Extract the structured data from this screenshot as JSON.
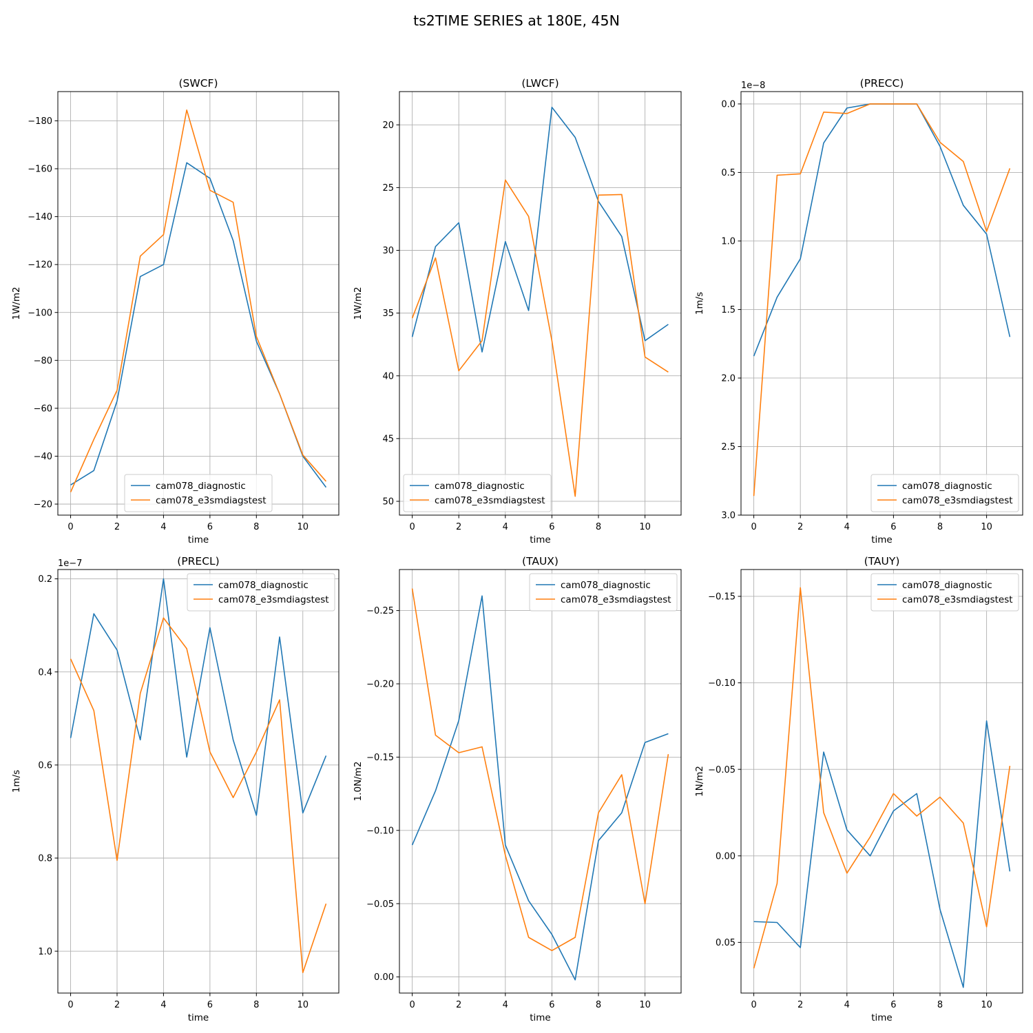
{
  "suptitle": "ts2TIME SERIES at 180E, 45N",
  "colors": {
    "series1": "#1f77b4",
    "series2": "#ff7f0e",
    "grid": "#b0b0b0"
  },
  "chart_data": [
    {
      "type": "line",
      "title": "(SWCF)",
      "xlabel": "time",
      "ylabel": "1W/m2",
      "offset_text": "",
      "xlim": [
        -0.55,
        11.55
      ],
      "ylim": [
        -15.4,
        -192.2
      ],
      "y_inverted": true,
      "xticks": [
        0,
        2,
        4,
        6,
        8,
        10
      ],
      "xtick_labels": [
        "0",
        "2",
        "4",
        "6",
        "8",
        "10"
      ],
      "yticks": [
        -20,
        -40,
        -60,
        -80,
        -100,
        -120,
        -140,
        -160,
        -180
      ],
      "ytick_labels": [
        "−20",
        "−40",
        "−60",
        "−80",
        "−100",
        "−120",
        "−140",
        "−160",
        "−180"
      ],
      "grid": true,
      "legend_position": "lower center",
      "x": [
        0,
        1,
        2,
        3,
        4,
        5,
        6,
        7,
        8,
        9,
        10,
        11
      ],
      "series": [
        {
          "name": "cam078_diagnostic",
          "values": [
            -28.0,
            -34.0,
            -63.0,
            -115.0,
            -120.0,
            -162.5,
            -156.0,
            -130.0,
            -88.0,
            -66.0,
            -40.0,
            -27.0
          ]
        },
        {
          "name": "cam078_e3smdiagstest",
          "values": [
            -25.0,
            -47.0,
            -67.5,
            -123.5,
            -132.5,
            -184.5,
            -151.0,
            -146.0,
            -90.0,
            -66.0,
            -40.5,
            -29.5
          ]
        }
      ]
    },
    {
      "type": "line",
      "title": "(LWCF)",
      "xlabel": "time",
      "ylabel": "1W/m2",
      "offset_text": "",
      "xlim": [
        -0.55,
        11.55
      ],
      "ylim": [
        51.1,
        17.35
      ],
      "y_inverted": true,
      "xticks": [
        0,
        2,
        4,
        6,
        8,
        10
      ],
      "xtick_labels": [
        "0",
        "2",
        "4",
        "6",
        "8",
        "10"
      ],
      "yticks": [
        20,
        25,
        30,
        35,
        40,
        45,
        50
      ],
      "ytick_labels": [
        "20",
        "25",
        "30",
        "35",
        "40",
        "45",
        "50"
      ],
      "grid": true,
      "legend_position": "lower left",
      "x": [
        0,
        1,
        2,
        3,
        4,
        5,
        6,
        7,
        8,
        9,
        10,
        11
      ],
      "series": [
        {
          "name": "cam078_diagnostic",
          "values": [
            36.9,
            29.7,
            27.8,
            38.1,
            29.3,
            34.8,
            18.6,
            21.0,
            26.1,
            28.9,
            37.2,
            35.9
          ]
        },
        {
          "name": "cam078_e3smdiagstest",
          "values": [
            35.4,
            30.6,
            39.6,
            37.2,
            24.4,
            27.3,
            37.2,
            49.6,
            25.6,
            25.55,
            38.5,
            39.7
          ]
        }
      ]
    },
    {
      "type": "line",
      "title": "(PRECC)",
      "xlabel": "time",
      "ylabel": "1m/s",
      "offset_text": "1e−8",
      "xlim": [
        -0.55,
        11.55
      ],
      "ylim": [
        3.0,
        -0.09
      ],
      "y_inverted": true,
      "xticks": [
        0,
        2,
        4,
        6,
        8,
        10
      ],
      "xtick_labels": [
        "0",
        "2",
        "4",
        "6",
        "8",
        "10"
      ],
      "yticks": [
        0.0,
        0.5,
        1.0,
        1.5,
        2.0,
        2.5,
        3.0
      ],
      "ytick_labels": [
        "0.0",
        "0.5",
        "1.0",
        "1.5",
        "2.0",
        "2.5",
        "3.0"
      ],
      "grid": true,
      "legend_position": "lower right",
      "x": [
        0,
        1,
        2,
        3,
        4,
        5,
        6,
        7,
        8,
        9,
        10,
        11
      ],
      "series": [
        {
          "name": "cam078_diagnostic",
          "values": [
            1.84,
            1.41,
            1.13,
            0.285,
            0.03,
            0.0,
            0.0,
            0.0,
            0.31,
            0.74,
            0.95,
            1.7
          ]
        },
        {
          "name": "cam078_e3smdiagstest",
          "values": [
            2.86,
            0.52,
            0.51,
            0.06,
            0.07,
            0.0,
            0.0,
            0.0,
            0.28,
            0.42,
            0.93,
            0.47
          ]
        }
      ]
    },
    {
      "type": "line",
      "title": "(PRECL)",
      "xlabel": "time",
      "ylabel": "1m/s",
      "offset_text": "1e−7",
      "xlim": [
        -0.55,
        11.55
      ],
      "ylim": [
        1.09,
        0.18
      ],
      "y_inverted": true,
      "xticks": [
        0,
        2,
        4,
        6,
        8,
        10
      ],
      "xtick_labels": [
        "0",
        "2",
        "4",
        "6",
        "8",
        "10"
      ],
      "yticks": [
        0.2,
        0.4,
        0.6,
        0.8,
        1.0
      ],
      "ytick_labels": [
        "0.2",
        "0.4",
        "0.6",
        "0.8",
        "1.0"
      ],
      "grid": true,
      "legend_position": "upper right",
      "x": [
        0,
        1,
        2,
        3,
        4,
        5,
        6,
        7,
        8,
        9,
        10,
        11
      ],
      "series": [
        {
          "name": "cam078_diagnostic",
          "values": [
            0.542,
            0.275,
            0.353,
            0.546,
            0.2,
            0.583,
            0.305,
            0.546,
            0.708,
            0.325,
            0.703,
            0.58
          ]
        },
        {
          "name": "cam078_e3smdiagstest",
          "values": [
            0.372,
            0.483,
            0.805,
            0.446,
            0.284,
            0.35,
            0.572,
            0.67,
            0.572,
            0.46,
            1.046,
            0.898
          ]
        }
      ]
    },
    {
      "type": "line",
      "title": "(TAUX)",
      "xlabel": "time",
      "ylabel": "1.0N/m2",
      "offset_text": "",
      "xlim": [
        -0.55,
        11.55
      ],
      "ylim": [
        0.011,
        -0.278
      ],
      "y_inverted": true,
      "xticks": [
        0,
        2,
        4,
        6,
        8,
        10
      ],
      "xtick_labels": [
        "0",
        "2",
        "4",
        "6",
        "8",
        "10"
      ],
      "yticks": [
        0.0,
        -0.05,
        -0.1,
        -0.15,
        -0.2,
        -0.25
      ],
      "ytick_labels": [
        "0.00",
        "−0.05",
        "−0.10",
        "−0.15",
        "−0.20",
        "−0.25"
      ],
      "grid": true,
      "legend_position": "upper right",
      "x": [
        0,
        1,
        2,
        3,
        4,
        5,
        6,
        7,
        8,
        9,
        10,
        11
      ],
      "series": [
        {
          "name": "cam078_diagnostic",
          "values": [
            -0.09,
            -0.127,
            -0.175,
            -0.26,
            -0.09,
            -0.052,
            -0.029,
            0.002,
            -0.093,
            -0.112,
            -0.16,
            -0.166
          ]
        },
        {
          "name": "cam078_e3smdiagstest",
          "values": [
            -0.265,
            -0.165,
            -0.153,
            -0.157,
            -0.083,
            -0.027,
            -0.018,
            -0.027,
            -0.112,
            -0.138,
            -0.05,
            -0.152
          ]
        }
      ]
    },
    {
      "type": "line",
      "title": "(TAUY)",
      "xlabel": "time",
      "ylabel": "1N/m2",
      "offset_text": "",
      "xlim": [
        -0.55,
        11.55
      ],
      "ylim": [
        0.0793,
        -0.1655
      ],
      "y_inverted": true,
      "xticks": [
        0,
        2,
        4,
        6,
        8,
        10
      ],
      "xtick_labels": [
        "0",
        "2",
        "4",
        "6",
        "8",
        "10"
      ],
      "yticks": [
        0.05,
        0.0,
        -0.05,
        -0.1,
        -0.15
      ],
      "ytick_labels": [
        "0.05",
        "0.00",
        "−0.05",
        "−0.10",
        "−0.15"
      ],
      "grid": true,
      "legend_position": "upper right",
      "x": [
        0,
        1,
        2,
        3,
        4,
        5,
        6,
        7,
        8,
        9,
        10,
        11
      ],
      "series": [
        {
          "name": "cam078_diagnostic",
          "values": [
            0.038,
            0.0385,
            0.053,
            -0.06,
            -0.015,
            0.0,
            -0.026,
            -0.036,
            0.031,
            0.076,
            -0.078,
            0.009
          ]
        },
        {
          "name": "cam078_e3smdiagstest",
          "values": [
            0.065,
            0.016,
            -0.155,
            -0.025,
            0.01,
            -0.011,
            -0.036,
            -0.023,
            -0.034,
            -0.019,
            0.041,
            -0.052
          ]
        }
      ]
    }
  ]
}
